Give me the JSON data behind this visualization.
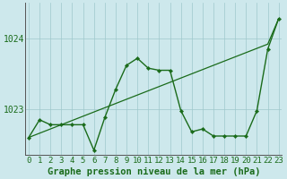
{
  "xlabel": "Graphe pression niveau de la mer (hPa)",
  "hours": [
    0,
    1,
    2,
    3,
    4,
    5,
    6,
    7,
    8,
    9,
    10,
    11,
    12,
    13,
    14,
    15,
    16,
    17,
    18,
    19,
    20,
    21,
    22,
    23
  ],
  "pressure": [
    1022.6,
    1022.85,
    1022.78,
    1022.78,
    1022.78,
    1022.78,
    1022.42,
    1022.88,
    1023.28,
    1023.62,
    1023.72,
    1023.58,
    1023.55,
    1023.55,
    1022.98,
    1022.68,
    1022.72,
    1022.62,
    1022.62,
    1022.62,
    1022.62,
    1022.98,
    1023.85,
    1024.28
  ],
  "trend": [
    1022.6,
    1022.66,
    1022.72,
    1022.78,
    1022.84,
    1022.9,
    1022.96,
    1023.02,
    1023.08,
    1023.14,
    1023.2,
    1023.26,
    1023.32,
    1023.38,
    1023.44,
    1023.5,
    1023.56,
    1023.62,
    1023.68,
    1023.74,
    1023.8,
    1023.86,
    1023.92,
    1024.28
  ],
  "ylim_min": 1022.35,
  "ylim_max": 1024.5,
  "yticks": [
    1023,
    1024
  ],
  "bg_color": "#cde8ec",
  "line_color": "#1a6b1a",
  "grid_color": "#9fc8cc",
  "label_color": "#1a6b1a",
  "xlabel_fontsize": 7.5,
  "tick_fontsize": 7.0
}
